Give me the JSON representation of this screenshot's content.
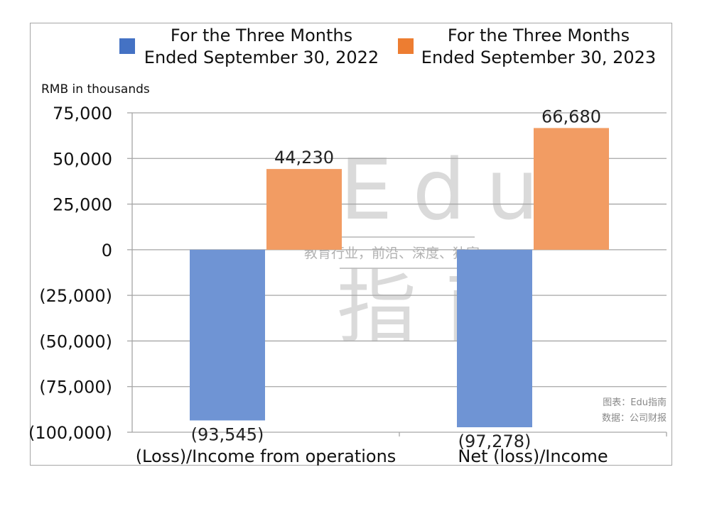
{
  "chart_data": {
    "type": "bar",
    "categories": [
      "(Loss)/Income from operations",
      "Net (loss)/Income"
    ],
    "series": [
      {
        "name": "For the Three Months Ended September 30, 2022",
        "color": "#6f94d4",
        "legend_color": "#4472c4",
        "values": [
          -93545,
          -97278
        ],
        "labels": [
          "(93,545)",
          "(97,278)"
        ]
      },
      {
        "name": "For the Three Months Ended September 30, 2023",
        "color": "#f29c63",
        "legend_color": "#ed7d31",
        "values": [
          44230,
          66680
        ],
        "labels": [
          "44,230",
          "66,680"
        ]
      }
    ],
    "legend_lines": [
      [
        "For the Three Months",
        "Ended September 30, 2022"
      ],
      [
        "For the Three Months",
        "Ended September 30, 2023"
      ]
    ],
    "ylabel": "RMB in thousands",
    "ylim": [
      -100000,
      75000
    ],
    "yticks": [
      75000,
      50000,
      25000,
      0,
      -25000,
      -50000,
      -75000,
      -100000
    ],
    "ytick_labels": [
      "75,000",
      "50,000",
      "25,000",
      "0",
      "(25,000)",
      "(50,000)",
      "(75,000)",
      "(100,000)"
    ],
    "grid": true,
    "legend_position": "top"
  },
  "watermark": {
    "big": "Edu",
    "tagline": "教育行业，前沿、深度、独家",
    "cn": "指南"
  },
  "source": {
    "line1": "图表：Edu指南",
    "line2": "数据：公司财报"
  }
}
